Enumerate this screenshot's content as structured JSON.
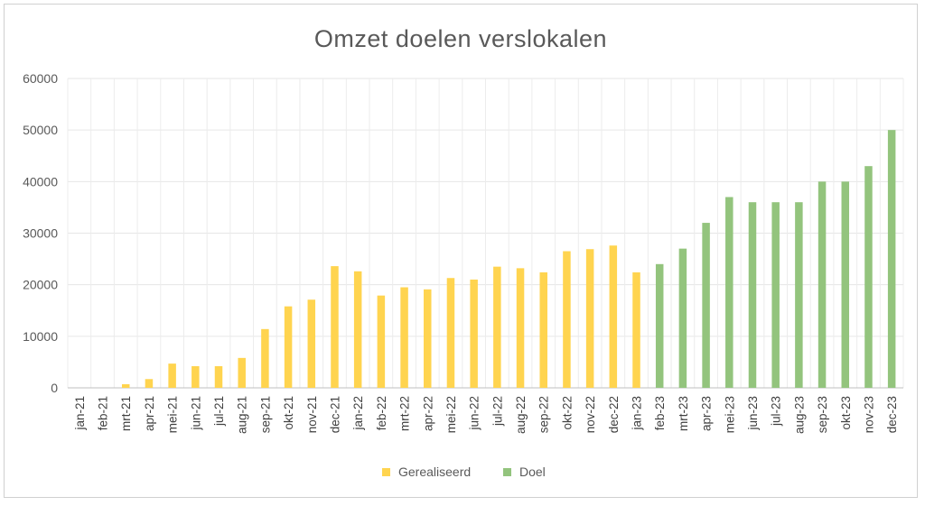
{
  "chart_data": {
    "type": "bar",
    "title": "Omzet doelen verslokalen",
    "xlabel": "",
    "ylabel": "",
    "ylim": [
      0,
      60000
    ],
    "yticks": [
      0,
      10000,
      20000,
      30000,
      40000,
      50000,
      60000
    ],
    "grid": true,
    "legend_position": "bottom",
    "categories": [
      "jan-21",
      "feb-21",
      "mrt-21",
      "apr-21",
      "mei-21",
      "jun-21",
      "jul-21",
      "aug-21",
      "sep-21",
      "okt-21",
      "nov-21",
      "dec-21",
      "jan-22",
      "feb-22",
      "mrt-22",
      "apr-22",
      "mei-22",
      "jun-22",
      "jul-22",
      "aug-22",
      "sep-22",
      "okt-22",
      "nov-22",
      "dec-22",
      "jan-23",
      "feb-23",
      "mrt-23",
      "apr-23",
      "mei-23",
      "jun-23",
      "jul-23",
      "aug-23",
      "sep-23",
      "okt-23",
      "nov-23",
      "dec-23"
    ],
    "series": [
      {
        "name": "Gerealiseerd",
        "color": "#FFD44F",
        "values": [
          0,
          0,
          700,
          1700,
          4700,
          4200,
          4200,
          5800,
          11400,
          15800,
          17100,
          23600,
          22600,
          17900,
          19500,
          19100,
          21300,
          21000,
          23500,
          23200,
          22400,
          26500,
          26900,
          27600,
          22400,
          null,
          null,
          null,
          null,
          null,
          null,
          null,
          null,
          null,
          null,
          null
        ]
      },
      {
        "name": "Doel",
        "color": "#93C47D",
        "values": [
          null,
          null,
          null,
          null,
          null,
          null,
          null,
          null,
          null,
          null,
          null,
          null,
          null,
          null,
          null,
          null,
          null,
          null,
          null,
          null,
          null,
          null,
          null,
          null,
          null,
          24000,
          27000,
          32000,
          37000,
          36000,
          36000,
          36000,
          40000,
          40000,
          43000,
          50000
        ]
      }
    ]
  }
}
